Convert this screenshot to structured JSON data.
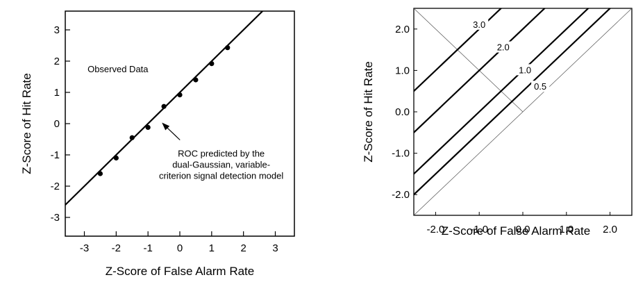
{
  "chart_data": [
    {
      "type": "scatter",
      "title": "",
      "xlabel": "Z-Score of False Alarm Rate",
      "ylabel": "Z-Score of Hit Rate",
      "xlim": [
        -3.6,
        3.6
      ],
      "ylim": [
        -3.6,
        3.6
      ],
      "xticks": [
        -3,
        -2,
        -1,
        0,
        1,
        2,
        3
      ],
      "yticks": [
        -3,
        -2,
        -1,
        0,
        1,
        2,
        3
      ],
      "xtick_labels": [
        "-3",
        "-2",
        "-1",
        "0",
        "1",
        "2",
        "3"
      ],
      "ytick_labels": [
        "-3",
        "-2",
        "-1",
        "0",
        "1",
        "2",
        "3"
      ],
      "grid": false,
      "series": [
        {
          "name": "Observed Data",
          "x": [
            -2.5,
            -2.0,
            -1.5,
            -1.0,
            -0.5,
            0.0,
            0.5,
            1.0,
            1.5
          ],
          "y": [
            -1.6,
            -1.1,
            -0.45,
            -0.12,
            0.55,
            0.92,
            1.4,
            1.92,
            2.43
          ]
        },
        {
          "name": "ROC predicted by the dual-Gaussian, variable-criterion signal detection model",
          "type": "line",
          "x": [
            -3.6,
            2.6
          ],
          "y": [
            -2.6,
            3.6
          ]
        }
      ],
      "annotations": [
        {
          "text_lines": [
            "Observed Data"
          ],
          "x": -2.9,
          "y": 1.65
        },
        {
          "text_lines": [
            "ROC predicted by the",
            "dual-Gaussian, variable-",
            "criterion signal detection model"
          ],
          "x": -0.4,
          "y": -1.05,
          "arrow_to": [
            -0.65,
            0.1
          ]
        }
      ]
    },
    {
      "type": "line",
      "title": "",
      "xlabel": "Z-Score of False Alarm Rate",
      "ylabel": "Z-Score of Hit Rate",
      "xlim": [
        -2.5,
        2.5
      ],
      "ylim": [
        -2.5,
        2.5
      ],
      "xticks": [
        -2.0,
        -1.0,
        0.0,
        1.0,
        2.0
      ],
      "yticks": [
        -2.0,
        -1.0,
        0.0,
        1.0,
        2.0
      ],
      "xtick_labels": [
        "-2.0",
        "-1.0",
        "0.0",
        "1.0",
        "2.0"
      ],
      "ytick_labels": [
        "-2.0",
        "-1.0",
        "0.0",
        "1.0",
        "2.0"
      ],
      "grid": false,
      "series": [
        {
          "name": "3.0",
          "d_prime": 3.0
        },
        {
          "name": "2.0",
          "d_prime": 2.0
        },
        {
          "name": "1.0",
          "d_prime": 1.0
        },
        {
          "name": "0.5",
          "d_prime": 0.5
        },
        {
          "name": "",
          "d_prime": 0.0
        }
      ],
      "labels": [
        {
          "text": "3.0",
          "x": -1.0,
          "y": 2.05
        },
        {
          "text": "2.0",
          "x": -0.45,
          "y": 1.5
        },
        {
          "text": "1.0",
          "x": 0.05,
          "y": 0.95
        },
        {
          "text": "0.5",
          "x": 0.4,
          "y": 0.55
        }
      ]
    }
  ]
}
